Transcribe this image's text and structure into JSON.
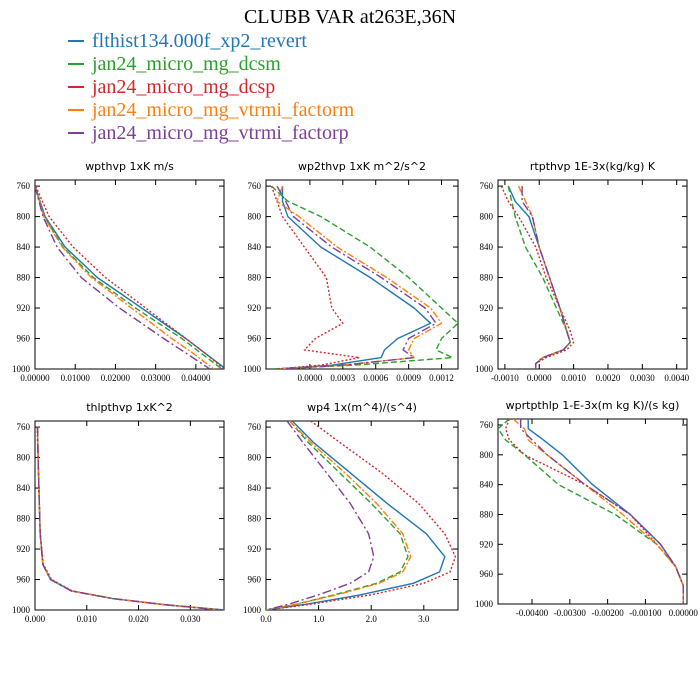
{
  "title": "CLUBB VAR at263E,36N",
  "legend": [
    {
      "name": "flthist134.000f_xp2_revert",
      "color": "#1f77b4",
      "dash": "solid"
    },
    {
      "name": "jan24_micro_mg_dcsm",
      "color": "#2ca02c",
      "dash": "dashed"
    },
    {
      "name": "jan24_micro_mg_dcsp",
      "color": "#d62728",
      "dash": "dotted"
    },
    {
      "name": "jan24_micro_mg_vtrmi_factorm",
      "color": "#ff7f0e",
      "dash": "dashdot"
    },
    {
      "name": "jan24_micro_mg_vtrmi_factorp",
      "color": "#7f3f98",
      "dash": "dashdot2"
    }
  ],
  "chart_data": [
    {
      "type": "line",
      "title": "wpthvp   1xK m/s",
      "xlim": [
        0,
        0.047
      ],
      "xticks": [
        0,
        0.01,
        0.02,
        0.03,
        0.04
      ],
      "xticklabels": [
        "0.00000",
        "0.01000",
        "0.02000",
        "0.03000",
        "0.04000"
      ],
      "ylim": [
        1000,
        752
      ],
      "yticks": [
        760,
        800,
        840,
        880,
        920,
        960,
        1000
      ],
      "y": [
        760,
        800,
        840,
        880,
        920,
        960,
        980,
        1000
      ],
      "series": [
        {
          "values": [
            0,
            0.0025,
            0.0075,
            0.0155,
            0.0265,
            0.0375,
            0.0425,
            0.0475
          ]
        },
        {
          "values": [
            0,
            0.0023,
            0.007,
            0.0145,
            0.025,
            0.0365,
            0.0415,
            0.0465
          ]
        },
        {
          "values": [
            0.0002,
            0.0035,
            0.0095,
            0.0175,
            0.0275,
            0.0375,
            0.0425,
            0.047
          ]
        },
        {
          "values": [
            0,
            0.0022,
            0.0068,
            0.014,
            0.024,
            0.034,
            0.0395,
            0.0445
          ]
        },
        {
          "values": [
            0,
            0.002,
            0.0055,
            0.0115,
            0.021,
            0.032,
            0.0378,
            0.0435
          ]
        }
      ]
    },
    {
      "type": "line",
      "title": "wp2thvp   1xK m^2/s^2",
      "xlim": [
        -0.0004,
        0.00135
      ],
      "xticks": [
        0,
        0.0003,
        0.0006,
        0.0009,
        0.0012
      ],
      "xticklabels": [
        "0.0000",
        "0.0003",
        "0.0006",
        "0.0009",
        "0.0012"
      ],
      "ylim": [
        1000,
        752
      ],
      "yticks": [
        760,
        800,
        840,
        880,
        920,
        960,
        1000
      ],
      "y": [
        760,
        780,
        800,
        840,
        880,
        920,
        940,
        960,
        975,
        985,
        995,
        1000
      ],
      "series": [
        {
          "values": [
            -0.00025,
            -0.00025,
            -0.0002,
            0.0001,
            0.00055,
            0.00095,
            0.0011,
            0.0008,
            0.00068,
            0.00065,
            0.0002,
            -0.0003
          ]
        },
        {
          "values": [
            -0.00035,
            -0.0002,
            0.0001,
            0.00055,
            0.0009,
            0.0012,
            0.00135,
            0.0012,
            0.00115,
            0.0013,
            0.0004,
            -0.00035
          ]
        },
        {
          "values": [
            -0.00035,
            -0.0003,
            -0.00025,
            -5e-05,
            0.00015,
            0.0002,
            0.0003,
            5e-05,
            -5e-05,
            0.00045,
            0.0001,
            -0.0003
          ]
        },
        {
          "values": [
            -0.00025,
            -0.0003,
            -0.0001,
            0.00025,
            0.0007,
            0.0011,
            0.0012,
            0.00095,
            0.0009,
            0.00095,
            0.0003,
            -0.0003
          ]
        },
        {
          "values": [
            -0.0003,
            -0.00022,
            -0.00015,
            0.0002,
            0.00065,
            0.00105,
            0.00115,
            0.0009,
            0.00085,
            0.00095,
            0.0003,
            -0.0003
          ]
        }
      ]
    },
    {
      "type": "line",
      "title": "rtpthvp   1E-3x(kg/kg) K",
      "xlim": [
        -0.0012,
        0.0043
      ],
      "xticks": [
        -0.001,
        0,
        0.001,
        0.002,
        0.003,
        0.004
      ],
      "xticklabels": [
        "-0.0010",
        "0.0000",
        "0.0010",
        "0.0020",
        "0.0030",
        "0.0040"
      ],
      "ylim": [
        1000,
        752
      ],
      "yticks": [
        760,
        800,
        840,
        880,
        920,
        960,
        1000
      ],
      "y": [
        760,
        780,
        800,
        840,
        880,
        920,
        950,
        965,
        975,
        985,
        993,
        1000
      ],
      "series": [
        {
          "values": [
            -0.0009,
            -0.0007,
            -0.0003,
            0,
            0.0003,
            0.0006,
            0.0008,
            0.0009,
            0.0007,
            0.0001,
            -0.0001,
            -0.0001
          ]
        },
        {
          "values": [
            -0.0009,
            -0.0008,
            -0.0007,
            -0.0004,
            0.0001,
            0.0005,
            0.0008,
            0.0009,
            0.0007,
            0.0001,
            -0.0001,
            -0.0001
          ]
        },
        {
          "values": [
            -0.0011,
            -0.0009,
            -0.0006,
            -0.0001,
            0.0002,
            0.0006,
            0.0009,
            0.001,
            0.0008,
            0.0002,
            -0.0001,
            -0.0001
          ]
        },
        {
          "values": [
            -0.0006,
            -0.0004,
            -0.0002,
            0,
            0.0003,
            0.0006,
            0.0008,
            0.0009,
            0.0007,
            0.0001,
            -0.0001,
            -0.0001
          ]
        },
        {
          "values": [
            -0.0005,
            -0.0005,
            -0.0002,
            0,
            0.0003,
            0.0006,
            0.0008,
            0.0009,
            0.0007,
            0.0001,
            -0.0001,
            -0.0001
          ]
        }
      ]
    },
    {
      "type": "line",
      "title": "thlpthvp   1xK^2",
      "xlim": [
        0,
        0.0365
      ],
      "xticks": [
        0,
        0.01,
        0.02,
        0.03
      ],
      "xticklabels": [
        "0.000",
        "0.010",
        "0.020",
        "0.030"
      ],
      "ylim": [
        1000,
        752
      ],
      "yticks": [
        760,
        800,
        840,
        880,
        920,
        960,
        1000
      ],
      "y": [
        760,
        800,
        850,
        900,
        940,
        960,
        975,
        985,
        993,
        1000
      ],
      "series": [
        {
          "values": [
            0.0005,
            0.0006,
            0.0008,
            0.001,
            0.0015,
            0.003,
            0.007,
            0.015,
            0.025,
            0.0365
          ]
        },
        {
          "values": [
            0.0005,
            0.0006,
            0.0008,
            0.001,
            0.0015,
            0.003,
            0.007,
            0.015,
            0.025,
            0.036
          ]
        },
        {
          "values": [
            0.0004,
            0.0006,
            0.0008,
            0.001,
            0.0016,
            0.0032,
            0.0072,
            0.0152,
            0.0252,
            0.0365
          ]
        },
        {
          "values": [
            0.0005,
            0.0006,
            0.0008,
            0.001,
            0.0015,
            0.003,
            0.007,
            0.015,
            0.025,
            0.036
          ]
        },
        {
          "values": [
            0.0005,
            0.0006,
            0.0008,
            0.001,
            0.0015,
            0.003,
            0.007,
            0.015,
            0.025,
            0.036
          ]
        }
      ]
    },
    {
      "type": "line",
      "title": "wp4   1x(m^4)/(s^4)",
      "xlim": [
        0,
        3.65
      ],
      "xticks": [
        0,
        1,
        2,
        3
      ],
      "xticklabels": [
        "0.0",
        "1.0",
        "2.0",
        "3.0"
      ],
      "ylim": [
        1000,
        752
      ],
      "yticks": [
        760,
        800,
        840,
        880,
        920,
        960,
        1000
      ],
      "y": [
        752,
        780,
        820,
        860,
        900,
        930,
        950,
        965,
        980,
        992,
        1000
      ],
      "series": [
        {
          "values": [
            0.5,
            0.9,
            1.6,
            2.3,
            3.05,
            3.4,
            3.3,
            2.8,
            1.8,
            0.8,
            0
          ]
        },
        {
          "values": [
            0.45,
            0.8,
            1.4,
            2.0,
            2.55,
            2.7,
            2.55,
            2.1,
            1.3,
            0.6,
            0
          ]
        },
        {
          "values": [
            0.85,
            1.4,
            2.2,
            2.9,
            3.4,
            3.6,
            3.5,
            3.0,
            2.0,
            0.9,
            0
          ]
        },
        {
          "values": [
            0.45,
            0.85,
            1.5,
            2.1,
            2.6,
            2.75,
            2.6,
            2.15,
            1.35,
            0.6,
            0
          ]
        },
        {
          "values": [
            0.4,
            0.7,
            1.15,
            1.6,
            1.95,
            2.05,
            1.95,
            1.6,
            1.0,
            0.45,
            0
          ]
        }
      ]
    },
    {
      "type": "line",
      "title": "wprtpthlp   1-E-3x(m kg K)/(s kg)",
      "xlim": [
        -0.0049,
        0.0001
      ],
      "xticks": [
        -0.004,
        -0.003,
        -0.002,
        -0.001,
        0
      ],
      "xticklabels": [
        "-0.00400",
        "-0.00300",
        "-0.00200",
        "-0.00100",
        "0.00000"
      ],
      "ylim": [
        1000,
        752
      ],
      "yticks": [
        760,
        800,
        840,
        880,
        920,
        960,
        1000
      ],
      "y": [
        752,
        765,
        780,
        800,
        840,
        880,
        920,
        950,
        975,
        990,
        1000
      ],
      "series": [
        {
          "values": [
            -0.0041,
            -0.0041,
            -0.0037,
            -0.0032,
            -0.0024,
            -0.0014,
            -0.0006,
            -0.0002,
            0,
            0,
            0
          ]
        },
        {
          "values": [
            -0.0046,
            -0.0049,
            -0.0047,
            -0.0042,
            -0.0033,
            -0.0018,
            -0.0007,
            -0.0002,
            0,
            0,
            0
          ]
        },
        {
          "values": [
            -0.0046,
            -0.0047,
            -0.0046,
            -0.0042,
            -0.0026,
            -0.0014,
            -0.0007,
            -0.0002,
            0,
            0,
            0
          ]
        },
        {
          "values": [
            -0.0045,
            -0.0042,
            -0.0041,
            -0.0036,
            -0.0026,
            -0.0016,
            -0.0007,
            -0.0002,
            0,
            0,
            0
          ]
        },
        {
          "values": [
            -0.0043,
            -0.0043,
            -0.004,
            -0.0036,
            -0.0026,
            -0.0014,
            -0.0006,
            -0.0002,
            0,
            0,
            0
          ]
        }
      ]
    }
  ]
}
